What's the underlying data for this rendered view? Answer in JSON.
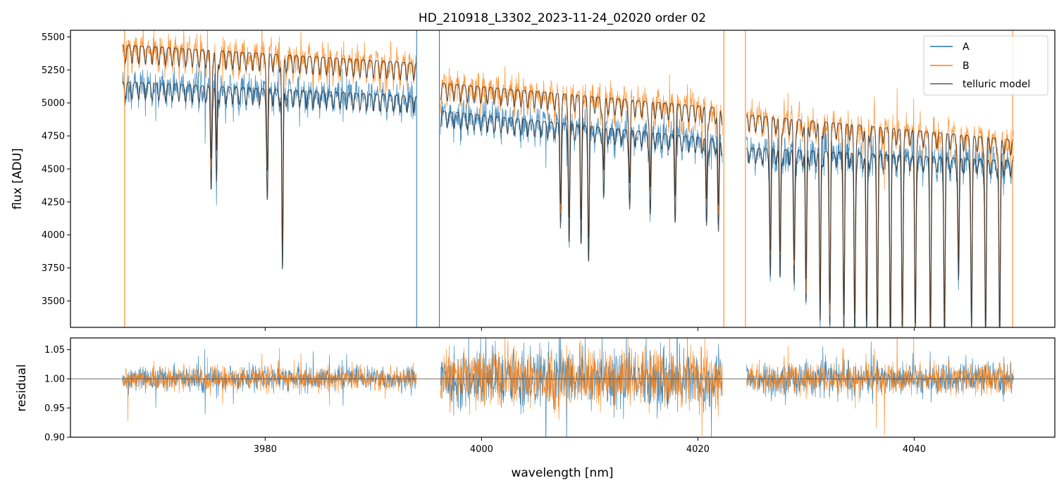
{
  "title": "HD_210918_L3302_2023-11-24_02020  order 02",
  "colors": {
    "A": "#1f77b4",
    "B": "#ff7f0e",
    "model": "#262626",
    "frame": "#000000"
  },
  "chart_data": [
    {
      "type": "line",
      "panel": "flux",
      "xlabel": "",
      "ylabel": "flux [ADU]",
      "xlim": [
        3962,
        4053
      ],
      "ylim": [
        3300,
        5550
      ],
      "yticks": [
        3500,
        3750,
        4000,
        4250,
        4500,
        4750,
        5000,
        5250,
        5500
      ],
      "xticks": [
        3980,
        4000,
        4020,
        4040
      ],
      "show_xtick_labels": false,
      "legend": {
        "placement": "top-right",
        "entries": [
          "A",
          "B",
          "telluric model"
        ]
      },
      "segments": [
        {
          "x_range": [
            3966.8,
            3994.0
          ],
          "A_level_start": 5160,
          "A_level_end": 5050,
          "B_level_start": 5440,
          "B_level_end": 5300
        },
        {
          "x_range": [
            3996.2,
            4022.3
          ],
          "A_level_start": 4940,
          "A_level_end": 4720,
          "B_level_start": 5150,
          "B_level_end": 4960
        },
        {
          "x_range": [
            4024.5,
            4049.2
          ],
          "A_level_start": 4660,
          "A_level_end": 4560,
          "B_level_start": 4910,
          "B_level_end": 4720
        }
      ],
      "series": [
        {
          "name": "A",
          "style": "noisy spectrum",
          "noise_sigma": 55
        },
        {
          "name": "B",
          "style": "noisy spectrum",
          "noise_sigma": 55
        },
        {
          "name": "telluric model",
          "style": "smooth model with absorption lines"
        }
      ],
      "absorption_lines": [
        {
          "x": 3975.0,
          "depth_A": 0.15
        },
        {
          "x": 3975.5,
          "depth_A": 0.14
        },
        {
          "x": 3980.2,
          "depth_A": 0.16
        },
        {
          "x": 3981.6,
          "depth_A": 0.27
        },
        {
          "x": 4007.3,
          "depth_A": 0.15
        },
        {
          "x": 4008.1,
          "depth_A": 0.18
        },
        {
          "x": 4009.2,
          "depth_A": 0.17
        },
        {
          "x": 4009.9,
          "depth_A": 0.2
        },
        {
          "x": 4011.3,
          "depth_A": 0.11
        },
        {
          "x": 4013.7,
          "depth_A": 0.12
        },
        {
          "x": 4015.6,
          "depth_A": 0.13
        },
        {
          "x": 4017.9,
          "depth_A": 0.12
        },
        {
          "x": 4020.8,
          "depth_A": 0.14
        },
        {
          "x": 4021.9,
          "depth_A": 0.15
        },
        {
          "x": 4026.7,
          "depth_A": 0.2
        },
        {
          "x": 4027.6,
          "depth_A": 0.21
        },
        {
          "x": 4028.9,
          "depth_A": 0.22
        },
        {
          "x": 4030.0,
          "depth_A": 0.25
        },
        {
          "x": 4031.3,
          "depth_A": 0.28
        },
        {
          "x": 4032.2,
          "depth_A": 0.27
        },
        {
          "x": 4033.5,
          "depth_A": 0.29
        },
        {
          "x": 4034.5,
          "depth_A": 0.3
        },
        {
          "x": 4035.6,
          "depth_A": 0.3
        },
        {
          "x": 4036.6,
          "depth_A": 0.31
        },
        {
          "x": 4037.8,
          "depth_A": 0.31
        },
        {
          "x": 4038.9,
          "depth_A": 0.3
        },
        {
          "x": 4040.1,
          "depth_A": 0.3
        },
        {
          "x": 4041.5,
          "depth_A": 0.3
        },
        {
          "x": 4042.8,
          "depth_A": 0.3
        },
        {
          "x": 4044.1,
          "depth_A": 0.2
        },
        {
          "x": 4045.3,
          "depth_A": 0.28
        },
        {
          "x": 4046.6,
          "depth_A": 0.3
        },
        {
          "x": 4047.9,
          "depth_A": 0.3
        }
      ],
      "spikes": [
        {
          "x": 3967.0,
          "series": "B"
        },
        {
          "x": 3994.0,
          "series": "A"
        },
        {
          "x": 3996.1,
          "series": "A"
        },
        {
          "x": 4022.4,
          "series": "B"
        },
        {
          "x": 4024.4,
          "series": "B"
        },
        {
          "x": 4049.1,
          "series": "B"
        }
      ]
    },
    {
      "type": "line",
      "panel": "residual",
      "xlabel": "wavelength [nm]",
      "ylabel": "residual",
      "xlim": [
        3962,
        4053
      ],
      "ylim": [
        0.9,
        1.07
      ],
      "yticks": [
        0.9,
        0.95,
        1.0,
        1.05
      ],
      "ytick_labels": [
        "0.90",
        "0.95",
        "1.00",
        "1.05"
      ],
      "xticks": [
        3980,
        4000,
        4020,
        4040
      ],
      "reference_line": 1.0,
      "series": [
        {
          "name": "A",
          "style": "noisy residual"
        },
        {
          "name": "B",
          "style": "noisy residual"
        }
      ],
      "noise_sigma_by_segment": [
        0.012,
        0.028,
        0.014
      ]
    }
  ]
}
